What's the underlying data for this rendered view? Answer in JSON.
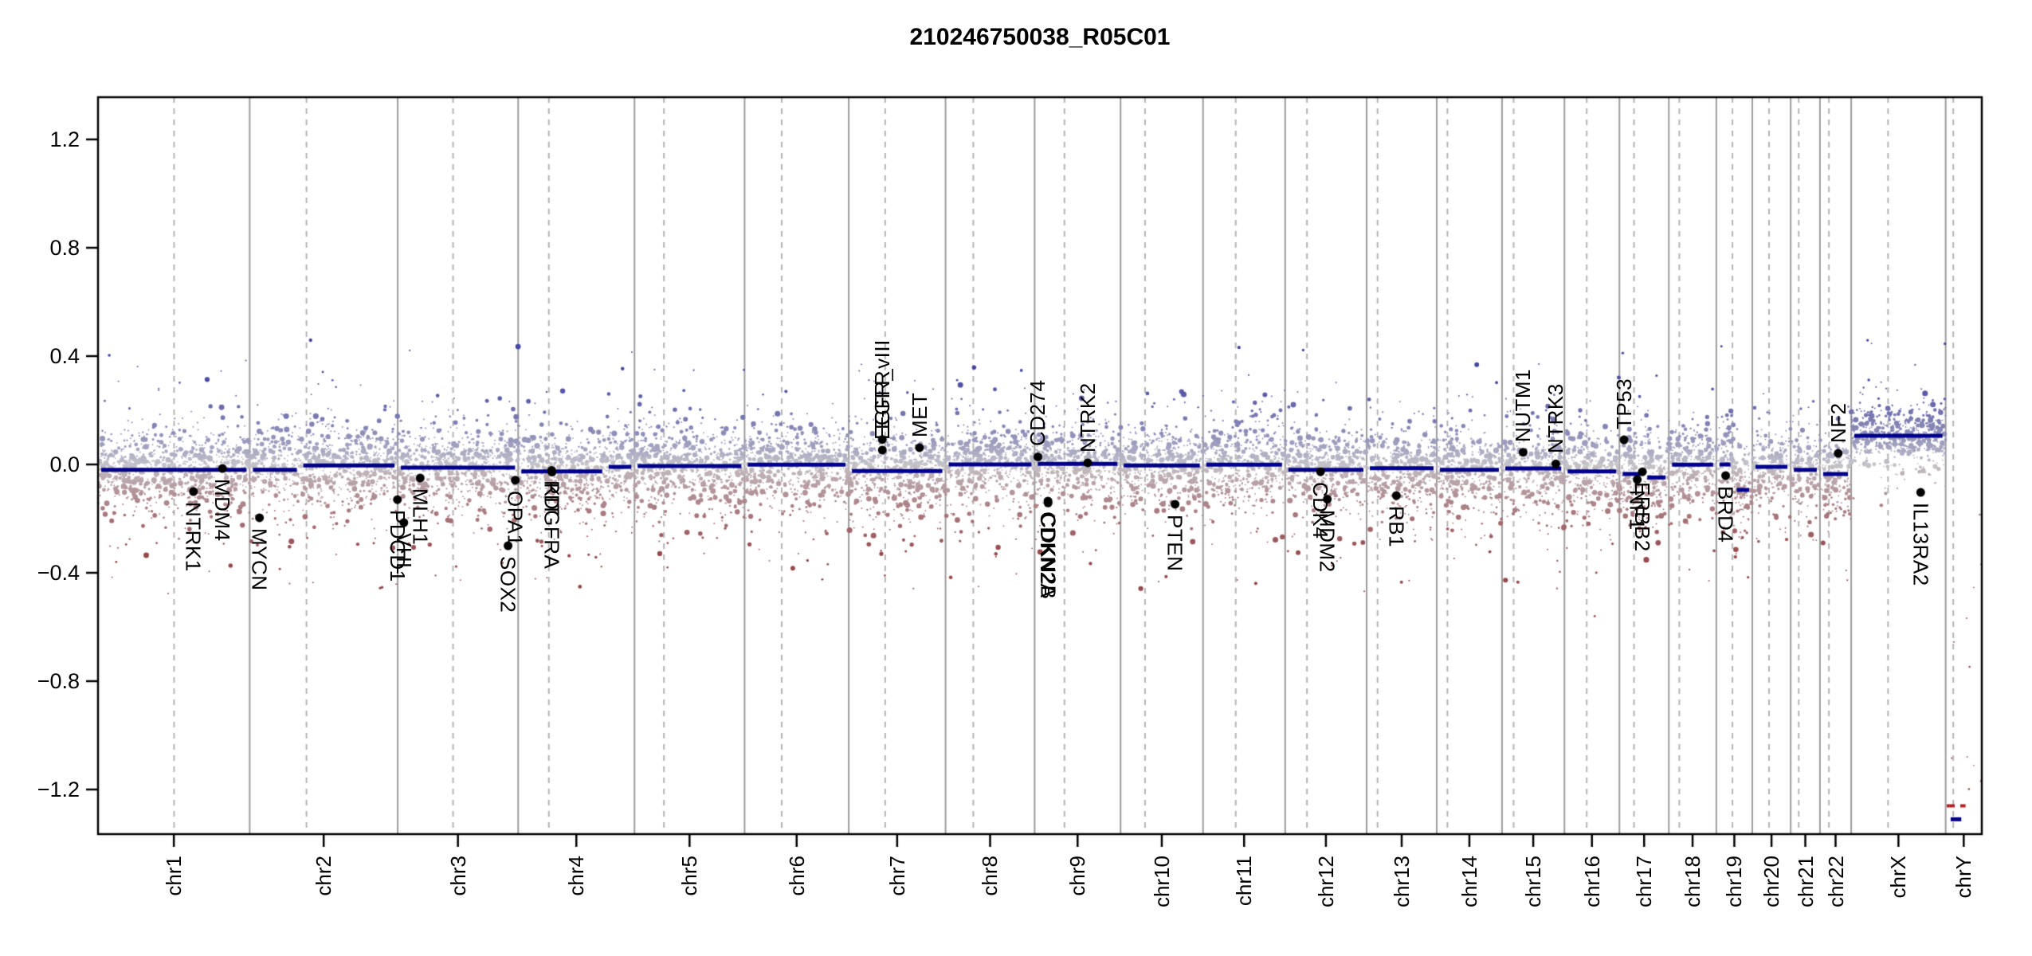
{
  "title": "210246750038_R05C01",
  "y_axis": {
    "tick_labels": [
      "1.2",
      "0.8",
      "0.4",
      "0.0",
      "−0.4",
      "−0.8",
      "−1.2"
    ],
    "tick_values": [
      1.2,
      0.8,
      0.4,
      0.0,
      -0.4,
      -0.8,
      -1.2
    ]
  },
  "chart_data": {
    "type": "scatter",
    "subtype": "cnv-genome-plot",
    "title": "210246750038_R05C01",
    "ylim": [
      -1.365,
      1.356
    ],
    "grid": {
      "chromosome_boundaries": "solid-gray",
      "centromeres": "dashed-gray"
    },
    "genome_total_mb": 3095.67,
    "chromosomes": [
      {
        "name": "chr1",
        "length_mb": 249.25,
        "centromere_mb": 125.0
      },
      {
        "name": "chr2",
        "length_mb": 243.2,
        "centromere_mb": 93.3
      },
      {
        "name": "chr3",
        "length_mb": 198.02,
        "centromere_mb": 91.0
      },
      {
        "name": "chr4",
        "length_mb": 191.15,
        "centromere_mb": 50.4
      },
      {
        "name": "chr5",
        "length_mb": 180.92,
        "centromere_mb": 48.4
      },
      {
        "name": "chr6",
        "length_mb": 171.12,
        "centromere_mb": 61.0
      },
      {
        "name": "chr7",
        "length_mb": 159.14,
        "centromere_mb": 59.9
      },
      {
        "name": "chr8",
        "length_mb": 146.36,
        "centromere_mb": 45.6
      },
      {
        "name": "chr9",
        "length_mb": 141.21,
        "centromere_mb": 49.0
      },
      {
        "name": "chr10",
        "length_mb": 135.53,
        "centromere_mb": 40.2
      },
      {
        "name": "chr11",
        "length_mb": 135.01,
        "centromere_mb": 53.7
      },
      {
        "name": "chr12",
        "length_mb": 133.85,
        "centromere_mb": 35.8
      },
      {
        "name": "chr13",
        "length_mb": 115.17,
        "centromere_mb": 17.9
      },
      {
        "name": "chr14",
        "length_mb": 107.35,
        "centromere_mb": 17.6
      },
      {
        "name": "chr15",
        "length_mb": 102.53,
        "centromere_mb": 19.0
      },
      {
        "name": "chr16",
        "length_mb": 90.35,
        "centromere_mb": 36.6
      },
      {
        "name": "chr17",
        "length_mb": 81.2,
        "centromere_mb": 24.0
      },
      {
        "name": "chr18",
        "length_mb": 78.08,
        "centromere_mb": 17.2
      },
      {
        "name": "chr19",
        "length_mb": 59.13,
        "centromere_mb": 26.5
      },
      {
        "name": "chr20",
        "length_mb": 63.03,
        "centromere_mb": 27.5
      },
      {
        "name": "chr21",
        "length_mb": 48.13,
        "centromere_mb": 13.2
      },
      {
        "name": "chr22",
        "length_mb": 51.3,
        "centromere_mb": 14.7
      },
      {
        "name": "chrX",
        "length_mb": 155.27,
        "centromere_mb": 60.6
      },
      {
        "name": "chrY",
        "length_mb": 59.37,
        "centromere_mb": 12.5
      }
    ],
    "genes": [
      {
        "label": "NTRK1",
        "chrom": "chr1",
        "pos_mb": 156.8,
        "value": -0.1
      },
      {
        "label": "MDM4",
        "chrom": "chr1",
        "pos_mb": 204.5,
        "value": -0.015
      },
      {
        "label": "MYCN",
        "chrom": "chr2",
        "pos_mb": 16.1,
        "value": -0.197
      },
      {
        "label": "PDCD1",
        "chrom": "chr2",
        "pos_mb": 242.8,
        "value": -0.13
      },
      {
        "label": "VHL",
        "chrom": "chr3",
        "pos_mb": 10.2,
        "value": -0.215
      },
      {
        "label": "MLH1",
        "chrom": "chr3",
        "pos_mb": 37.0,
        "value": -0.05
      },
      {
        "label": "SOX2",
        "chrom": "chr3",
        "pos_mb": 181.4,
        "value": -0.3
      },
      {
        "label": "OPA1",
        "chrom": "chr3",
        "pos_mb": 193.3,
        "value": -0.058
      },
      {
        "label": "PDGFRA",
        "chrom": "chr4",
        "pos_mb": 55.1,
        "value": -0.022
      },
      {
        "label": "KIT",
        "chrom": "chr4",
        "pos_mb": 55.5,
        "value": -0.028
      },
      {
        "label": "EGFR",
        "chrom": "chr7",
        "pos_mb": 55.1,
        "value": 0.092
      },
      {
        "label": "EGFR_vIII",
        "chrom": "chr7",
        "pos_mb": 55.2,
        "value": 0.053
      },
      {
        "label": "MET",
        "chrom": "chr7",
        "pos_mb": 116.3,
        "value": 0.062
      },
      {
        "label": "CD274",
        "chrom": "chr9",
        "pos_mb": 5.4,
        "value": 0.028
      },
      {
        "label": "CDKN2A",
        "chrom": "chr9",
        "pos_mb": 21.9,
        "value": -0.135
      },
      {
        "label": "CDKN2B",
        "chrom": "chr9",
        "pos_mb": 22.1,
        "value": -0.142
      },
      {
        "label": "NTRK2",
        "chrom": "chr9",
        "pos_mb": 87.3,
        "value": 0.006
      },
      {
        "label": "PTEN",
        "chrom": "chr10",
        "pos_mb": 89.6,
        "value": -0.147
      },
      {
        "label": "CDK4",
        "chrom": "chr12",
        "pos_mb": 58.1,
        "value": -0.027
      },
      {
        "label": "MDM2",
        "chrom": "chr12",
        "pos_mb": 69.2,
        "value": -0.128
      },
      {
        "label": "RB1",
        "chrom": "chr13",
        "pos_mb": 48.9,
        "value": -0.115
      },
      {
        "label": "NUTM1",
        "chrom": "chr15",
        "pos_mb": 34.6,
        "value": 0.045
      },
      {
        "label": "NTRK3",
        "chrom": "chr15",
        "pos_mb": 88.4,
        "value": 0.002
      },
      {
        "label": "TP53",
        "chrom": "chr17",
        "pos_mb": 7.57,
        "value": 0.091
      },
      {
        "label": "NF1",
        "chrom": "chr17",
        "pos_mb": 29.4,
        "value": -0.056
      },
      {
        "label": "ERBB2",
        "chrom": "chr17",
        "pos_mb": 37.8,
        "value": -0.027
      },
      {
        "label": "BRD4",
        "chrom": "chr19",
        "pos_mb": 15.3,
        "value": -0.041
      },
      {
        "label": "NF2",
        "chrom": "chr22",
        "pos_mb": 30.0,
        "value": 0.041
      },
      {
        "label": "IL13RA2",
        "chrom": "chrX",
        "pos_mb": 114.2,
        "value": -0.103
      }
    ],
    "segments": [
      {
        "chrom": "chr1",
        "start": 0,
        "end": 1,
        "value": -0.02
      },
      {
        "chrom": "chr2",
        "start": 0,
        "end": 0.34,
        "value": -0.02
      },
      {
        "chrom": "chr2",
        "start": 0.34,
        "end": 1,
        "value": -0.004
      },
      {
        "chrom": "chr3",
        "start": 0,
        "end": 1,
        "value": -0.012
      },
      {
        "chrom": "chr4",
        "start": 0,
        "end": 0.75,
        "value": -0.026
      },
      {
        "chrom": "chr4",
        "start": 0.75,
        "end": 1,
        "value": -0.009
      },
      {
        "chrom": "chr5",
        "start": 0,
        "end": 1,
        "value": -0.006
      },
      {
        "chrom": "chr6",
        "start": 0,
        "end": 1,
        "value": -0.001
      },
      {
        "chrom": "chr7",
        "start": 0,
        "end": 1,
        "value": -0.024
      },
      {
        "chrom": "chr8",
        "start": 0,
        "end": 1,
        "value": 0.0
      },
      {
        "chrom": "chr9",
        "start": 0,
        "end": 1,
        "value": 0.002
      },
      {
        "chrom": "chr10",
        "start": 0,
        "end": 1,
        "value": -0.004
      },
      {
        "chrom": "chr11",
        "start": 0,
        "end": 1,
        "value": -0.001
      },
      {
        "chrom": "chr12",
        "start": 0,
        "end": 1,
        "value": -0.02
      },
      {
        "chrom": "chr13",
        "start": 0,
        "end": 1,
        "value": -0.014
      },
      {
        "chrom": "chr14",
        "start": 0,
        "end": 1,
        "value": -0.02
      },
      {
        "chrom": "chr15",
        "start": 0,
        "end": 1,
        "value": -0.015
      },
      {
        "chrom": "chr16",
        "start": 0,
        "end": 1,
        "value": -0.026
      },
      {
        "chrom": "chr17",
        "start": 0,
        "end": 0.5,
        "value": -0.035
      },
      {
        "chrom": "chr17",
        "start": 0.5,
        "end": 1,
        "value": -0.048
      },
      {
        "chrom": "chr18",
        "start": 0,
        "end": 1,
        "value": -0.001
      },
      {
        "chrom": "chr19",
        "start": 0,
        "end": 0.48,
        "value": 0.0
      },
      {
        "chrom": "chr19",
        "start": 0.48,
        "end": 1,
        "value": -0.094
      },
      {
        "chrom": "chr20",
        "start": 0,
        "end": 1,
        "value": -0.009
      },
      {
        "chrom": "chr21",
        "start": 0,
        "end": 1,
        "value": -0.02
      },
      {
        "chrom": "chr22",
        "start": 0,
        "end": 1,
        "value": -0.035
      },
      {
        "chrom": "chrX",
        "start": 0,
        "end": 1,
        "value": 0.106
      },
      {
        "chrom": "chrY",
        "start": 0.05,
        "end": 0.52,
        "value": -1.31
      }
    ],
    "special_segments": [
      {
        "chrom": "chrY",
        "start": 0.03,
        "end": 0.55,
        "value": -1.26,
        "style": "dashed",
        "color": "#B22222"
      }
    ],
    "outliers": [
      {
        "chrom": "chr3",
        "frac": 0.999,
        "value": 0.435,
        "r": 3.4
      },
      {
        "chrom": "chr8",
        "frac": 0.59,
        "value": -0.306,
        "r": 3.2
      },
      {
        "chrom": "chr8",
        "frac": 0.565,
        "value": -0.33,
        "r": 2.2
      },
      {
        "chrom": "chr10",
        "frac": 0.875,
        "value": -0.285,
        "r": 3.4
      },
      {
        "chrom": "chr22",
        "frac": 0.1,
        "value": -0.29,
        "r": 3.0
      },
      {
        "chrom": "chr16",
        "frac": 0.55,
        "value": -0.56,
        "r": 1.4
      },
      {
        "chrom": "chr1",
        "frac": 0.12,
        "value": -0.36,
        "r": 1.4
      },
      {
        "chrom": "chr5",
        "frac": 0.3,
        "value": -0.38,
        "r": 1.3
      }
    ],
    "scatter": {
      "seed": 42,
      "points_per_mb": 3.6,
      "mean_shift": 0.008,
      "sd_mixture": [
        [
          0.7,
          0.062
        ],
        [
          0.22,
          0.105
        ],
        [
          0.07,
          0.16
        ],
        [
          0.01,
          0.22
        ]
      ],
      "negative_skew": 1.25,
      "chrY_points": 12
    },
    "colors": {
      "segment": "#00008B",
      "detection_segment": "#B22222",
      "gene_dot": "#000000",
      "boundary_line": "#9c9c9c",
      "centromere_line": "#b4b4b4",
      "box": "#000000",
      "gain_deep": "#4646A0",
      "loss_deep": "#96494D",
      "neutral_point": "#C5C5CB",
      "background": "#FFFFFF"
    }
  }
}
